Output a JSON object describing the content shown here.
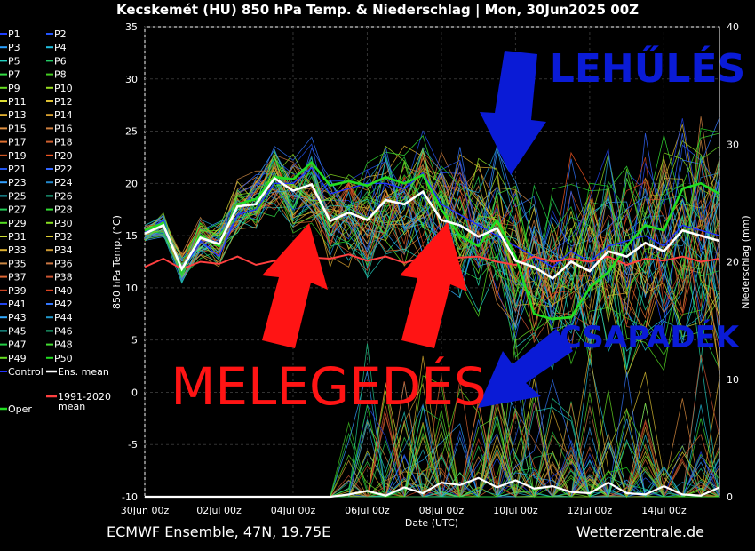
{
  "title": "Kecskemét  (HU)  850 hPa Temp. & Niederschlag | Mon, 30Jun2025 00Z",
  "footer_left": "ECMWF Ensemble, 47N, 19.75E",
  "footer_right": "Wetterzentrale.de",
  "annotations": {
    "lehules": "LEHŰLÉS",
    "csapadek": "CSAPADÉK",
    "melegedes": "MELEGEDÉS"
  },
  "colors": {
    "annotation_blue": "#0a1bd6",
    "annotation_red": "#ff1414",
    "ens_mean": "#ffffff",
    "climate_mean": "#ff4040",
    "oper": "#22dd22",
    "control": "#2233ff"
  },
  "legend": {
    "members": [
      "P1",
      "P2",
      "P3",
      "P4",
      "P5",
      "P6",
      "P7",
      "P8",
      "P9",
      "P10",
      "P11",
      "P12",
      "P13",
      "P14",
      "P15",
      "P16",
      "P17",
      "P18",
      "P19",
      "P20",
      "P21",
      "P22",
      "P23",
      "P24",
      "P25",
      "P26",
      "P27",
      "P28",
      "P29",
      "P30",
      "P31",
      "P32",
      "P33",
      "P34",
      "P35",
      "P36",
      "P37",
      "P38",
      "P39",
      "P40",
      "P41",
      "P42",
      "P43",
      "P44",
      "P45",
      "P46",
      "P47",
      "P48",
      "P49",
      "P50"
    ],
    "member_colors": [
      "#1f3fff",
      "#2255ff",
      "#2aa0ff",
      "#22c0e0",
      "#22d0c0",
      "#22cc66",
      "#33dd44",
      "#44cc22",
      "#66dd22",
      "#99dd22",
      "#dddd33",
      "#ddc033",
      "#e0b030",
      "#d8a030",
      "#e09040",
      "#d08040",
      "#e07030",
      "#d06030",
      "#cc5522",
      "#ee5522",
      "#2255ee",
      "#3366ff",
      "#33a0ff",
      "#2288cc",
      "#22c0d0",
      "#22d0a0",
      "#22cc55",
      "#33dd33",
      "#55dd22",
      "#88dd22",
      "#ccdd33",
      "#ddcc33",
      "#ddb030",
      "#cc9933",
      "#cc8844",
      "#cc7744",
      "#dd6633",
      "#cc5533",
      "#cc4422",
      "#dd4422",
      "#2244ee",
      "#3377ff",
      "#33aaff",
      "#2299cc",
      "#22ccc0",
      "#22d090",
      "#22cc44",
      "#44dd33",
      "#66dd22",
      "#22dd22"
    ],
    "control": "Control",
    "ens_mean": "Ens. mean",
    "climate_mean": "1991-2020 mean",
    "oper": "Oper"
  },
  "chart_data": {
    "type": "line",
    "title": "Kecskemét  (HU)  850 hPa Temp. & Niederschlag | Mon, 30Jun2025 00Z",
    "xlabel": "Date (UTC)",
    "ylabel_left": "850 hPa Temp. (°C)",
    "ylabel_right": "Niederschlag (mm)",
    "x_tick_labels": [
      "30Jun 00z",
      "02Jul 00z",
      "04Jul 00z",
      "06Jul 00z",
      "08Jul 00z",
      "10Jul 00z",
      "12Jul 00z",
      "14Jul 00z"
    ],
    "ylim_left": [
      -10,
      35
    ],
    "yticks_left": [
      -10,
      -5,
      0,
      5,
      10,
      15,
      20,
      25,
      30,
      35
    ],
    "ylim_right": [
      0,
      40
    ],
    "yticks_right": [
      0,
      10,
      20,
      30,
      40
    ],
    "x_days": [
      0,
      0.5,
      1,
      1.5,
      2,
      2.5,
      3,
      3.5,
      4,
      4.5,
      5,
      5.5,
      6,
      6.5,
      7,
      7.5,
      8,
      8.5,
      9,
      9.5,
      10,
      10.5,
      11,
      11.5,
      12,
      12.5,
      13,
      13.5,
      14,
      14.5,
      15,
      15.5
    ],
    "grid": true,
    "series": [
      {
        "name": "Ens. mean",
        "values": [
          15.2,
          16.0,
          11.8,
          14.8,
          14.2,
          17.8,
          18.0,
          20.5,
          19.3,
          19.9,
          16.4,
          17.2,
          16.5,
          18.4,
          18.0,
          19.2,
          16.5,
          16.0,
          14.9,
          15.7,
          12.6,
          12.0,
          10.9,
          12.5,
          11.6,
          13.5,
          13.0,
          14.3,
          13.5,
          15.5,
          15.0,
          14.5
        ]
      },
      {
        "name": "Oper",
        "values": [
          15.5,
          16.2,
          11.6,
          15.0,
          14.0,
          18.0,
          18.5,
          20.6,
          20.4,
          22.0,
          19.8,
          20.2,
          19.8,
          20.6,
          20.0,
          20.8,
          17.5,
          15.0,
          14.0,
          16.5,
          13.0,
          7.5,
          7.0,
          7.2,
          10.0,
          11.5,
          14.0,
          16.0,
          15.5,
          19.5,
          20.0,
          19.0
        ]
      },
      {
        "name": "Control",
        "values": [
          15.3,
          16.5,
          11.5,
          14.5,
          13.0,
          17.0,
          17.5,
          20.0,
          20.0,
          21.5,
          19.0,
          19.5,
          20.0,
          20.0,
          19.5,
          21.0,
          18.0,
          17.0,
          16.0,
          15.0,
          14.0,
          13.0,
          12.0,
          13.5,
          12.5,
          14.0,
          14.5,
          15.0,
          14.0,
          16.0,
          15.5,
          15.0
        ]
      },
      {
        "name": "1991-2020 mean",
        "values": [
          12.0,
          12.8,
          11.8,
          12.5,
          12.3,
          13.0,
          12.2,
          12.6,
          13.0,
          12.9,
          12.8,
          13.2,
          12.6,
          13.0,
          12.4,
          12.9,
          12.6,
          12.9,
          13.0,
          12.5,
          12.2,
          13.0,
          12.5,
          12.8,
          12.5,
          13.0,
          12.2,
          12.8,
          12.6,
          13.0,
          12.5,
          12.8
        ]
      },
      {
        "name": "Ens. mean precipitation",
        "values": [
          0,
          0,
          0,
          0,
          0,
          0,
          0,
          0,
          0,
          0,
          0,
          0.2,
          0.5,
          0.1,
          0.8,
          0.3,
          1.2,
          1.0,
          1.6,
          0.8,
          1.4,
          0.7,
          0.9,
          0.4,
          0.3,
          1.2,
          0.3,
          0.2,
          0.9,
          0.2,
          0.1,
          0.8
        ]
      }
    ]
  }
}
